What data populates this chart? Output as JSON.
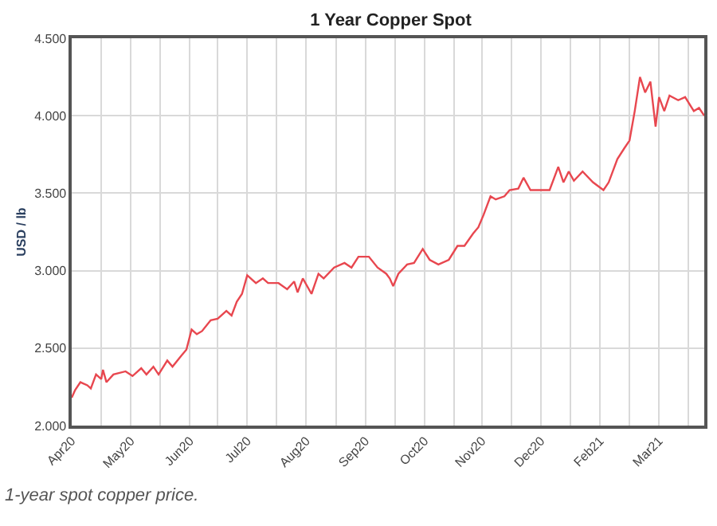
{
  "chart_data": {
    "type": "line",
    "title": "1 Year Copper Spot",
    "ylabel": "USD / lb",
    "annotations": [
      "1-year spot copper price."
    ],
    "x": [
      "2020-04-03",
      "2020-04-05",
      "2020-04-08",
      "2020-04-12",
      "2020-04-14",
      "2020-04-17",
      "2020-04-20",
      "2020-04-21",
      "2020-04-23",
      "2020-04-27",
      "2020-05-04",
      "2020-05-08",
      "2020-05-13",
      "2020-05-16",
      "2020-05-20",
      "2020-05-23",
      "2020-05-28",
      "2020-05-31",
      "2020-06-05",
      "2020-06-08",
      "2020-06-11",
      "2020-06-14",
      "2020-06-17",
      "2020-06-22",
      "2020-06-26",
      "2020-07-01",
      "2020-07-04",
      "2020-07-07",
      "2020-07-10",
      "2020-07-13",
      "2020-07-18",
      "2020-07-22",
      "2020-07-25",
      "2020-07-31",
      "2020-08-05",
      "2020-08-09",
      "2020-08-11",
      "2020-08-14",
      "2020-08-19",
      "2020-08-23",
      "2020-08-26",
      "2020-09-01",
      "2020-09-07",
      "2020-09-11",
      "2020-09-15",
      "2020-09-21",
      "2020-09-26",
      "2020-10-01",
      "2020-10-03",
      "2020-10-05",
      "2020-10-08",
      "2020-10-13",
      "2020-10-17",
      "2020-10-22",
      "2020-10-26",
      "2020-10-31",
      "2020-11-06",
      "2020-11-11",
      "2020-11-15",
      "2020-11-20",
      "2020-11-23",
      "2020-11-26",
      "2020-11-30",
      "2020-12-03",
      "2020-12-08",
      "2020-12-11",
      "2020-12-16",
      "2020-12-19",
      "2020-12-23",
      "2020-12-28",
      "2021-01-03",
      "2021-01-08",
      "2021-01-11",
      "2021-01-14",
      "2021-01-17",
      "2021-01-22",
      "2021-01-28",
      "2021-02-03",
      "2021-02-06",
      "2021-02-11",
      "2021-02-15",
      "2021-02-18",
      "2021-02-21",
      "2021-02-24",
      "2021-02-27",
      "2021-03-02",
      "2021-03-05",
      "2021-03-07",
      "2021-03-10",
      "2021-03-13",
      "2021-03-18",
      "2021-03-22",
      "2021-03-27",
      "2021-03-30",
      "2021-04-02"
    ],
    "series": [
      {
        "color": "#e8474f",
        "values": [
          2.18,
          2.23,
          2.28,
          2.26,
          2.24,
          2.33,
          2.3,
          2.36,
          2.28,
          2.33,
          2.35,
          2.32,
          2.37,
          2.33,
          2.38,
          2.33,
          2.42,
          2.38,
          2.45,
          2.49,
          2.62,
          2.59,
          2.61,
          2.68,
          2.69,
          2.74,
          2.71,
          2.8,
          2.85,
          2.97,
          2.92,
          2.95,
          2.92,
          2.92,
          2.88,
          2.93,
          2.86,
          2.95,
          2.85,
          2.98,
          2.95,
          3.02,
          3.05,
          3.02,
          3.09,
          3.09,
          3.02,
          2.98,
          2.95,
          2.9,
          2.98,
          3.04,
          3.05,
          3.14,
          3.07,
          3.04,
          3.07,
          3.16,
          3.16,
          3.24,
          3.28,
          3.36,
          3.48,
          3.46,
          3.48,
          3.52,
          3.53,
          3.6,
          3.52,
          3.52,
          3.52,
          3.67,
          3.57,
          3.64,
          3.58,
          3.64,
          3.57,
          3.52,
          3.57,
          3.72,
          3.79,
          3.84,
          4.03,
          4.25,
          4.15,
          4.22,
          3.93,
          4.12,
          4.03,
          4.13,
          4.1,
          4.12,
          4.03,
          4.05,
          4.0
        ]
      }
    ],
    "xlim": [
      "2020-04-03",
      "2021-04-02"
    ],
    "xticks": [
      {
        "value": "2020-04-03",
        "label": "Apr20"
      },
      {
        "value": "2020-04-20",
        "label": null
      },
      {
        "value": "2020-05-07",
        "label": "May20"
      },
      {
        "value": "2020-05-24",
        "label": null
      },
      {
        "value": "2020-06-10",
        "label": "Jun20"
      },
      {
        "value": "2020-06-26",
        "label": null
      },
      {
        "value": "2020-07-13",
        "label": "Jul20"
      },
      {
        "value": "2020-07-30",
        "label": null
      },
      {
        "value": "2020-08-16",
        "label": "Aug20"
      },
      {
        "value": "2020-09-02",
        "label": null
      },
      {
        "value": "2020-09-19",
        "label": "Sep20"
      },
      {
        "value": "2020-10-06",
        "label": null
      },
      {
        "value": "2020-10-23",
        "label": "Oct20"
      },
      {
        "value": "2020-11-09",
        "label": null
      },
      {
        "value": "2020-11-25",
        "label": "Nov20"
      },
      {
        "value": "2020-12-12",
        "label": null
      },
      {
        "value": "2020-12-29",
        "label": "Dec20"
      },
      {
        "value": "2021-01-15",
        "label": null
      },
      {
        "value": "2021-02-01",
        "label": "Feb21"
      },
      {
        "value": "2021-02-18",
        "label": null
      },
      {
        "value": "2021-03-07",
        "label": "Mar21"
      },
      {
        "value": "2021-03-24",
        "label": null
      }
    ],
    "ylim": [
      2,
      4.5
    ],
    "yticks": [
      {
        "value": 2,
        "label": "2.000"
      },
      {
        "value": 2.5,
        "label": "2.500"
      },
      {
        "value": 3,
        "label": "3.000"
      },
      {
        "value": 3.5,
        "label": "3.500"
      },
      {
        "value": 4,
        "label": "4.000"
      },
      {
        "value": 4.5,
        "label": "4.500"
      }
    ],
    "grid": true,
    "line_style": "solid"
  }
}
